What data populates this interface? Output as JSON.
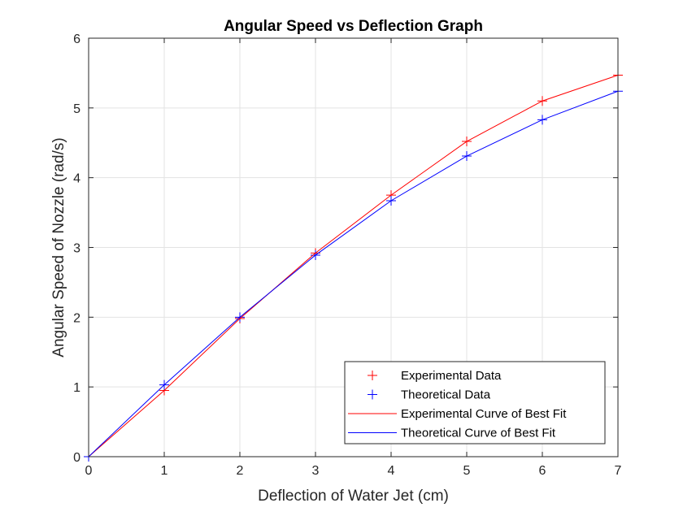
{
  "chart_data": {
    "type": "line",
    "title": "Angular Speed vs Deflection Graph",
    "xlabel": "Deflection of Water Jet (cm)",
    "ylabel": "Angular Speed of Nozzle (rad/s)",
    "xlim": [
      0,
      7
    ],
    "ylim": [
      0,
      6
    ],
    "xticks": [
      0,
      1,
      2,
      3,
      4,
      5,
      6,
      7
    ],
    "yticks": [
      0,
      1,
      2,
      3,
      4,
      5,
      6
    ],
    "xtick_labels": [
      "0",
      "1",
      "2",
      "3",
      "4",
      "5",
      "6",
      "7"
    ],
    "ytick_labels": [
      "0",
      "1",
      "2",
      "3",
      "4",
      "5",
      "6"
    ],
    "grid": true,
    "legend_position": "bottom-right",
    "x": [
      0,
      1,
      2,
      3,
      4,
      5,
      6,
      7
    ],
    "series": [
      {
        "name": "Experimental Data",
        "style": "marker",
        "marker": "+",
        "color": "#ff0000",
        "values": [
          0,
          0.95,
          1.98,
          2.92,
          3.75,
          4.52,
          5.1,
          5.47
        ]
      },
      {
        "name": "Theoretical Data",
        "style": "marker",
        "marker": "+",
        "color": "#0000ff",
        "values": [
          0,
          1.03,
          2.0,
          2.89,
          3.67,
          4.31,
          4.83,
          5.24
        ]
      },
      {
        "name": "Experimental Curve of Best Fit",
        "style": "line",
        "color": "#ff0000",
        "values": [
          0,
          0.95,
          1.98,
          2.92,
          3.75,
          4.52,
          5.1,
          5.47
        ]
      },
      {
        "name": "Theoretical Curve of Best Fit",
        "style": "line",
        "color": "#0000ff",
        "values": [
          0,
          1.03,
          2.0,
          2.89,
          3.67,
          4.31,
          4.83,
          5.24
        ]
      }
    ]
  }
}
